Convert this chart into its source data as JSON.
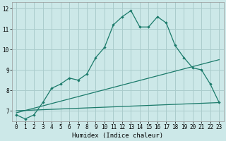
{
  "title": "",
  "xlabel": "Humidex (Indice chaleur)",
  "ylabel": "",
  "background_color": "#cce8e8",
  "grid_color": "#aacccc",
  "line_color": "#1a7a6a",
  "xlim": [
    -0.5,
    23.5
  ],
  "ylim": [
    6.5,
    12.3
  ],
  "yticks": [
    7,
    8,
    9,
    10,
    11,
    12
  ],
  "xticks": [
    0,
    1,
    2,
    3,
    4,
    5,
    6,
    7,
    8,
    9,
    10,
    11,
    12,
    13,
    14,
    15,
    16,
    17,
    18,
    19,
    20,
    21,
    22,
    23
  ],
  "series1_x": [
    0,
    1,
    2,
    3,
    4,
    5,
    6,
    7,
    8,
    9,
    10,
    11,
    12,
    13,
    14,
    15,
    16,
    17,
    18,
    19,
    20,
    21,
    22,
    23
  ],
  "series1_y": [
    6.8,
    6.6,
    6.8,
    7.4,
    8.1,
    8.3,
    8.6,
    8.5,
    8.8,
    9.6,
    10.1,
    11.2,
    11.6,
    11.9,
    11.1,
    11.1,
    11.6,
    11.3,
    10.2,
    9.6,
    9.1,
    9.0,
    8.3,
    7.4
  ],
  "series2_x": [
    0,
    23
  ],
  "series2_y": [
    7.0,
    7.4
  ],
  "series3_x": [
    0,
    23
  ],
  "series3_y": [
    6.9,
    9.5
  ],
  "tick_fontsize": 5.5,
  "xlabel_fontsize": 6.5
}
